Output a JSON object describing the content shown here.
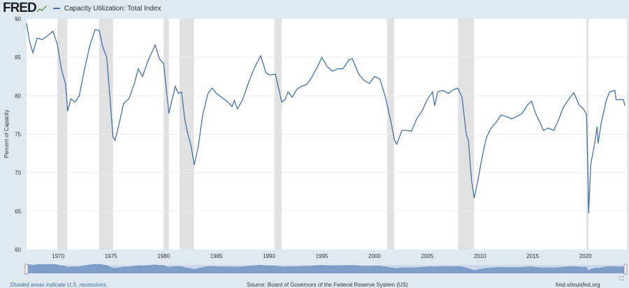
{
  "header": {
    "logo": "FRED",
    "legend_label": "Capacity Utilization: Total Index"
  },
  "footer": {
    "note": "Shaded areas indicate U.S. recessions.",
    "source": "Source: Board of Governors of the Federal Reserve System (US)",
    "site": "fred.stlouisfed.org"
  },
  "colors": {
    "line": "#4572a7",
    "recession": "#e1e1e1",
    "background": "#e1e9f0",
    "navigator": "#7d9cc8"
  },
  "chart_data": {
    "type": "line",
    "title": "",
    "xlabel": "",
    "ylabel": "Percent of Capacity",
    "xlim": [
      1967,
      2023.8
    ],
    "ylim": [
      60,
      90
    ],
    "grid": "horizontal",
    "legend": "top-left",
    "yticks": [
      "60",
      "65",
      "70",
      "75",
      "80",
      "85",
      "90"
    ],
    "xticks": [
      "1970",
      "1975",
      "1980",
      "1985",
      "1990",
      "1995",
      "2000",
      "2005",
      "2010",
      "2015",
      "2020"
    ],
    "recessions": [
      [
        1969.92,
        1970.87
      ],
      [
        1973.87,
        1975.2
      ],
      [
        1980.0,
        1980.5
      ],
      [
        1981.5,
        1982.87
      ],
      [
        1990.5,
        1991.2
      ],
      [
        2001.2,
        2001.87
      ],
      [
        2007.92,
        2009.45
      ],
      [
        2020.1,
        2020.3
      ]
    ],
    "series": [
      {
        "name": "Capacity Utilization: Total Index",
        "points": [
          [
            1967.0,
            89.4
          ],
          [
            1967.3,
            87.0
          ],
          [
            1967.6,
            85.6
          ],
          [
            1968.0,
            87.5
          ],
          [
            1968.5,
            87.3
          ],
          [
            1969.0,
            87.8
          ],
          [
            1969.5,
            88.4
          ],
          [
            1969.9,
            86.8
          ],
          [
            1970.3,
            83.5
          ],
          [
            1970.7,
            81.5
          ],
          [
            1970.9,
            78.0
          ],
          [
            1971.2,
            79.6
          ],
          [
            1971.6,
            79.2
          ],
          [
            1972.0,
            80.0
          ],
          [
            1972.5,
            83.5
          ],
          [
            1973.0,
            86.5
          ],
          [
            1973.5,
            88.6
          ],
          [
            1973.9,
            88.5
          ],
          [
            1974.2,
            86.5
          ],
          [
            1974.6,
            85.0
          ],
          [
            1974.9,
            80.0
          ],
          [
            1975.2,
            74.6
          ],
          [
            1975.4,
            74.2
          ],
          [
            1975.8,
            76.5
          ],
          [
            1976.2,
            79.0
          ],
          [
            1976.7,
            79.6
          ],
          [
            1977.2,
            81.5
          ],
          [
            1977.6,
            83.5
          ],
          [
            1978.0,
            82.5
          ],
          [
            1978.5,
            84.5
          ],
          [
            1979.0,
            86.0
          ],
          [
            1979.2,
            86.6
          ],
          [
            1979.6,
            84.8
          ],
          [
            1980.0,
            84.2
          ],
          [
            1980.4,
            79.0
          ],
          [
            1980.5,
            77.7
          ],
          [
            1980.8,
            79.5
          ],
          [
            1981.1,
            81.2
          ],
          [
            1981.4,
            80.3
          ],
          [
            1981.7,
            80.5
          ],
          [
            1982.0,
            77.0
          ],
          [
            1982.3,
            75.0
          ],
          [
            1982.6,
            73.5
          ],
          [
            1982.9,
            71.0
          ],
          [
            1983.3,
            73.5
          ],
          [
            1983.7,
            77.5
          ],
          [
            1984.2,
            80.3
          ],
          [
            1984.6,
            81.0
          ],
          [
            1985.0,
            80.3
          ],
          [
            1985.5,
            79.8
          ],
          [
            1986.0,
            79.3
          ],
          [
            1986.5,
            78.6
          ],
          [
            1986.7,
            79.4
          ],
          [
            1987.0,
            78.3
          ],
          [
            1987.5,
            79.5
          ],
          [
            1988.0,
            81.5
          ],
          [
            1988.5,
            83.3
          ],
          [
            1989.0,
            84.7
          ],
          [
            1989.2,
            85.2
          ],
          [
            1989.7,
            83.0
          ],
          [
            1990.0,
            82.7
          ],
          [
            1990.6,
            82.8
          ],
          [
            1991.2,
            79.2
          ],
          [
            1991.5,
            79.5
          ],
          [
            1991.8,
            80.5
          ],
          [
            1992.2,
            79.8
          ],
          [
            1992.6,
            80.8
          ],
          [
            1993.0,
            81.2
          ],
          [
            1993.6,
            81.5
          ],
          [
            1994.0,
            82.3
          ],
          [
            1994.6,
            83.8
          ],
          [
            1995.0,
            85.0
          ],
          [
            1995.5,
            83.8
          ],
          [
            1996.0,
            83.2
          ],
          [
            1996.5,
            83.5
          ],
          [
            1997.0,
            83.5
          ],
          [
            1997.6,
            84.7
          ],
          [
            1997.9,
            84.8
          ],
          [
            1998.5,
            82.8
          ],
          [
            1999.0,
            82.0
          ],
          [
            1999.5,
            81.6
          ],
          [
            2000.0,
            82.5
          ],
          [
            2000.5,
            82.2
          ],
          [
            2001.0,
            80.0
          ],
          [
            2001.5,
            77.0
          ],
          [
            2001.9,
            74.2
          ],
          [
            2002.1,
            73.7
          ],
          [
            2002.6,
            75.5
          ],
          [
            2003.0,
            75.5
          ],
          [
            2003.5,
            75.4
          ],
          [
            2004.0,
            77.0
          ],
          [
            2004.5,
            78.0
          ],
          [
            2005.0,
            79.5
          ],
          [
            2005.5,
            80.5
          ],
          [
            2005.7,
            78.7
          ],
          [
            2006.0,
            80.5
          ],
          [
            2006.5,
            80.7
          ],
          [
            2007.0,
            80.3
          ],
          [
            2007.5,
            80.8
          ],
          [
            2007.9,
            81.0
          ],
          [
            2008.3,
            79.8
          ],
          [
            2008.7,
            75.0
          ],
          [
            2008.9,
            74.2
          ],
          [
            2009.2,
            69.0
          ],
          [
            2009.45,
            66.7
          ],
          [
            2009.8,
            69.0
          ],
          [
            2010.2,
            72.0
          ],
          [
            2010.6,
            74.5
          ],
          [
            2011.0,
            75.7
          ],
          [
            2011.5,
            76.5
          ],
          [
            2012.0,
            77.5
          ],
          [
            2012.5,
            77.3
          ],
          [
            2013.0,
            77.0
          ],
          [
            2013.5,
            77.3
          ],
          [
            2014.0,
            77.7
          ],
          [
            2014.5,
            78.8
          ],
          [
            2014.9,
            79.3
          ],
          [
            2015.3,
            77.6
          ],
          [
            2015.7,
            76.5
          ],
          [
            2016.0,
            75.5
          ],
          [
            2016.5,
            75.8
          ],
          [
            2017.0,
            75.5
          ],
          [
            2017.5,
            77.0
          ],
          [
            2017.9,
            78.5
          ],
          [
            2018.5,
            79.7
          ],
          [
            2018.9,
            80.4
          ],
          [
            2019.4,
            78.8
          ],
          [
            2019.8,
            78.3
          ],
          [
            2020.1,
            77.6
          ],
          [
            2020.25,
            69.5
          ],
          [
            2020.3,
            64.7
          ],
          [
            2020.5,
            71.0
          ],
          [
            2020.9,
            74.0
          ],
          [
            2021.1,
            76.0
          ],
          [
            2021.2,
            73.8
          ],
          [
            2021.5,
            76.5
          ],
          [
            2022.0,
            79.5
          ],
          [
            2022.3,
            80.5
          ],
          [
            2022.8,
            80.7
          ],
          [
            2022.9,
            79.5
          ],
          [
            2023.2,
            79.5
          ],
          [
            2023.6,
            79.5
          ],
          [
            2023.75,
            78.7
          ]
        ]
      }
    ]
  }
}
